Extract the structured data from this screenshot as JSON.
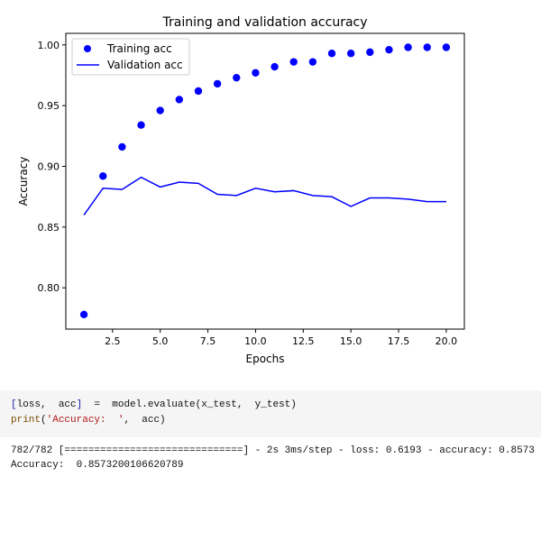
{
  "chart_data": {
    "type": "line",
    "title": "Training and validation accuracy",
    "xlabel": "Epochs",
    "ylabel": "Accuracy",
    "xlim": [
      0.05,
      20.95
    ],
    "ylim": [
      0.766,
      1.0095
    ],
    "x_ticks": [
      2.5,
      5.0,
      7.5,
      10.0,
      12.5,
      15.0,
      17.5,
      20.0
    ],
    "x_tick_labels": [
      "2.5",
      "5.0",
      "7.5",
      "10.0",
      "12.5",
      "15.0",
      "17.5",
      "20.0"
    ],
    "y_ticks": [
      0.8,
      0.85,
      0.9,
      0.95,
      1.0
    ],
    "y_tick_labels": [
      "0.80",
      "0.85",
      "0.90",
      "0.95",
      "1.00"
    ],
    "grid": false,
    "legend_position": "top-left",
    "x": [
      1,
      2,
      3,
      4,
      5,
      6,
      7,
      8,
      9,
      10,
      11,
      12,
      13,
      14,
      15,
      16,
      17,
      18,
      19,
      20
    ],
    "series": [
      {
        "name": "Training acc",
        "style": "dots",
        "color": "#0000ff",
        "values": [
          0.778,
          0.892,
          0.916,
          0.934,
          0.946,
          0.955,
          0.962,
          0.968,
          0.973,
          0.977,
          0.982,
          0.986,
          0.986,
          0.993,
          0.993,
          0.994,
          0.996,
          0.998,
          0.998,
          0.998
        ]
      },
      {
        "name": "Validation acc",
        "style": "line",
        "color": "#0000ff",
        "values": [
          0.86,
          0.882,
          0.881,
          0.891,
          0.883,
          0.887,
          0.886,
          0.877,
          0.876,
          0.882,
          0.879,
          0.88,
          0.876,
          0.875,
          0.867,
          0.874,
          0.874,
          0.873,
          0.871,
          0.871
        ]
      }
    ]
  },
  "cell": {
    "code_line1": {
      "open": "[",
      "vars": "loss,  acc",
      "close": "]",
      "rest": "  =  model.evaluate(x_test,  y_test)"
    },
    "code_line2": {
      "fn": "print",
      "open": "(",
      "str": "'Accuracy:  '",
      "rest": ",  acc)"
    },
    "output_line1": "782/782 [==============================] - 2s 3ms/step - loss: 0.6193 - accuracy: 0.8573",
    "output_line2": "Accuracy:  0.8573200106620789"
  }
}
